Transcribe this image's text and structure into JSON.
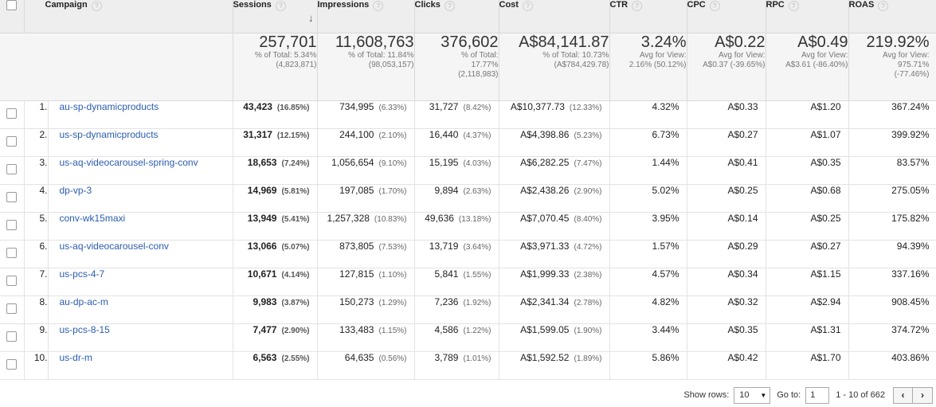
{
  "columns": {
    "campaign": "Campaign",
    "sessions": "Sessions",
    "impressions": "Impressions",
    "clicks": "Clicks",
    "cost": "Cost",
    "ctr": "CTR",
    "cpc": "CPC",
    "rpc": "RPC",
    "roas": "ROAS",
    "help_glyph": "?",
    "sort_glyph": "↓"
  },
  "totals": {
    "sessions": {
      "value": "257,701",
      "line1": "% of Total: 5.34%",
      "line2": "(4,823,871)"
    },
    "impressions": {
      "value": "11,608,763",
      "line1": "% of Total: 11.84%",
      "line2": "(98,053,157)"
    },
    "clicks": {
      "value": "376,602",
      "line1": "% of Total:",
      "line2": "17.77%",
      "line3": "(2,118,983)"
    },
    "cost": {
      "value": "A$84,141.87",
      "line1": "% of Total: 10.73%",
      "line2": "(A$784,429.78)"
    },
    "ctr": {
      "value": "3.24%",
      "line1": "Avg for View:",
      "line2": "2.16% (50.12%)"
    },
    "cpc": {
      "value": "A$0.22",
      "line1": "Avg for View:",
      "line2": "A$0.37 (-39.65%)"
    },
    "rpc": {
      "value": "A$0.49",
      "line1": "Avg for View:",
      "line2": "A$3.61 (-86.40%)"
    },
    "roas": {
      "value": "219.92%",
      "line1": "Avg for View:",
      "line2": "975.71%",
      "line3": "(-77.46%)"
    }
  },
  "rows": [
    {
      "idx": "1.",
      "campaign": "au-sp-dynamicproducts",
      "sessions": "43,423",
      "sessions_pct": "(16.85%)",
      "impressions": "734,995",
      "impressions_pct": "(6.33%)",
      "clicks": "31,727",
      "clicks_pct": "(8.42%)",
      "cost": "A$10,377.73",
      "cost_pct": "(12.33%)",
      "ctr": "4.32%",
      "cpc": "A$0.33",
      "rpc": "A$1.20",
      "roas": "367.24%"
    },
    {
      "idx": "2.",
      "campaign": "us-sp-dynamicproducts",
      "sessions": "31,317",
      "sessions_pct": "(12.15%)",
      "impressions": "244,100",
      "impressions_pct": "(2.10%)",
      "clicks": "16,440",
      "clicks_pct": "(4.37%)",
      "cost": "A$4,398.86",
      "cost_pct": "(5.23%)",
      "ctr": "6.73%",
      "cpc": "A$0.27",
      "rpc": "A$1.07",
      "roas": "399.92%"
    },
    {
      "idx": "3.",
      "campaign": "us-aq-videocarousel-spring-conv",
      "sessions": "18,653",
      "sessions_pct": "(7.24%)",
      "impressions": "1,056,654",
      "impressions_pct": "(9.10%)",
      "clicks": "15,195",
      "clicks_pct": "(4.03%)",
      "cost": "A$6,282.25",
      "cost_pct": "(7.47%)",
      "ctr": "1.44%",
      "cpc": "A$0.41",
      "rpc": "A$0.35",
      "roas": "83.57%"
    },
    {
      "idx": "4.",
      "campaign": "dp-vp-3",
      "sessions": "14,969",
      "sessions_pct": "(5.81%)",
      "impressions": "197,085",
      "impressions_pct": "(1.70%)",
      "clicks": "9,894",
      "clicks_pct": "(2.63%)",
      "cost": "A$2,438.26",
      "cost_pct": "(2.90%)",
      "ctr": "5.02%",
      "cpc": "A$0.25",
      "rpc": "A$0.68",
      "roas": "275.05%"
    },
    {
      "idx": "5.",
      "campaign": "conv-wk15maxi",
      "sessions": "13,949",
      "sessions_pct": "(5.41%)",
      "impressions": "1,257,328",
      "impressions_pct": "(10.83%)",
      "clicks": "49,636",
      "clicks_pct": "(13.18%)",
      "cost": "A$7,070.45",
      "cost_pct": "(8.40%)",
      "ctr": "3.95%",
      "cpc": "A$0.14",
      "rpc": "A$0.25",
      "roas": "175.82%"
    },
    {
      "idx": "6.",
      "campaign": "us-aq-videocarousel-conv",
      "sessions": "13,066",
      "sessions_pct": "(5.07%)",
      "impressions": "873,805",
      "impressions_pct": "(7.53%)",
      "clicks": "13,719",
      "clicks_pct": "(3.64%)",
      "cost": "A$3,971.33",
      "cost_pct": "(4.72%)",
      "ctr": "1.57%",
      "cpc": "A$0.29",
      "rpc": "A$0.27",
      "roas": "94.39%"
    },
    {
      "idx": "7.",
      "campaign": "us-pcs-4-7",
      "sessions": "10,671",
      "sessions_pct": "(4.14%)",
      "impressions": "127,815",
      "impressions_pct": "(1.10%)",
      "clicks": "5,841",
      "clicks_pct": "(1.55%)",
      "cost": "A$1,999.33",
      "cost_pct": "(2.38%)",
      "ctr": "4.57%",
      "cpc": "A$0.34",
      "rpc": "A$1.15",
      "roas": "337.16%"
    },
    {
      "idx": "8.",
      "campaign": "au-dp-ac-m",
      "sessions": "9,983",
      "sessions_pct": "(3.87%)",
      "impressions": "150,273",
      "impressions_pct": "(1.29%)",
      "clicks": "7,236",
      "clicks_pct": "(1.92%)",
      "cost": "A$2,341.34",
      "cost_pct": "(2.78%)",
      "ctr": "4.82%",
      "cpc": "A$0.32",
      "rpc": "A$2.94",
      "roas": "908.45%"
    },
    {
      "idx": "9.",
      "campaign": "us-pcs-8-15",
      "sessions": "7,477",
      "sessions_pct": "(2.90%)",
      "impressions": "133,483",
      "impressions_pct": "(1.15%)",
      "clicks": "4,586",
      "clicks_pct": "(1.22%)",
      "cost": "A$1,599.05",
      "cost_pct": "(1.90%)",
      "ctr": "3.44%",
      "cpc": "A$0.35",
      "rpc": "A$1.31",
      "roas": "374.72%"
    },
    {
      "idx": "10.",
      "campaign": "us-dr-m",
      "sessions": "6,563",
      "sessions_pct": "(2.55%)",
      "impressions": "64,635",
      "impressions_pct": "(0.56%)",
      "clicks": "3,789",
      "clicks_pct": "(1.01%)",
      "cost": "A$1,592.52",
      "cost_pct": "(1.89%)",
      "ctr": "5.86%",
      "cpc": "A$0.42",
      "rpc": "A$1.70",
      "roas": "403.86%"
    }
  ],
  "footer": {
    "show_rows_label": "Show rows:",
    "show_rows_value": "10",
    "dropdown_glyph": "▼",
    "goto_label": "Go to:",
    "goto_value": "1",
    "range_text": "1 - 10 of 662",
    "prev_glyph": "‹",
    "next_glyph": "›"
  }
}
